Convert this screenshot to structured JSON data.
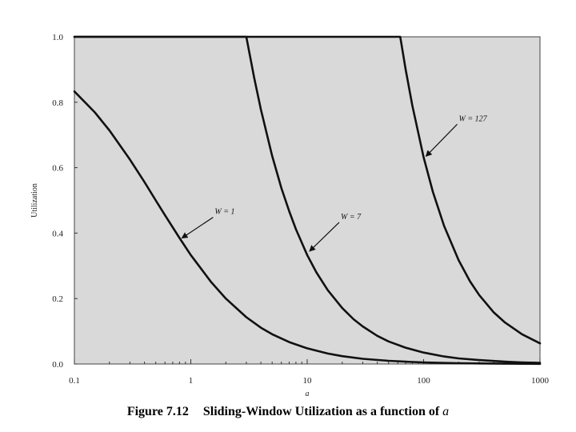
{
  "chart_data": {
    "type": "line",
    "title": "",
    "caption": {
      "number": "Figure 7.12",
      "text": "Sliding-Window Utilization as a function of",
      "variable": "a"
    },
    "xlabel": "a",
    "ylabel": "Utilization",
    "xscale": "log",
    "xlim": [
      0.1,
      1000
    ],
    "ylim": [
      0.0,
      1.0
    ],
    "xticks": [
      {
        "value": 0.1,
        "label": "0.1"
      },
      {
        "value": 1,
        "label": "1"
      },
      {
        "value": 10,
        "label": "10"
      },
      {
        "value": 100,
        "label": "100"
      },
      {
        "value": 1000,
        "label": "1000"
      }
    ],
    "yticks": [
      {
        "value": 0.0,
        "label": "0.0"
      },
      {
        "value": 0.2,
        "label": "0.2"
      },
      {
        "value": 0.4,
        "label": "0.4"
      },
      {
        "value": 0.6,
        "label": "0.6"
      },
      {
        "value": 0.8,
        "label": "0.8"
      },
      {
        "value": 1.0,
        "label": "1.0"
      }
    ],
    "grid": false,
    "background": "#d9d9d9",
    "line_color": "#111111",
    "series": [
      {
        "label": "W = 1",
        "W": 1,
        "annotation_point": [
          0.8,
          0.38
        ],
        "x": [
          0.1,
          0.15,
          0.2,
          0.3,
          0.4,
          0.5,
          0.6,
          0.8,
          1,
          1.5,
          2,
          3,
          4,
          5,
          7,
          10,
          15,
          20,
          30,
          50,
          70,
          100,
          150,
          200,
          300,
          500,
          700,
          1000
        ],
        "y": [
          0.833,
          0.769,
          0.714,
          0.625,
          0.556,
          0.5,
          0.455,
          0.385,
          0.333,
          0.25,
          0.2,
          0.143,
          0.111,
          0.091,
          0.067,
          0.048,
          0.032,
          0.024,
          0.016,
          0.0099,
          0.0071,
          0.005,
          0.0033,
          0.0025,
          0.0017,
          0.001,
          0.0007,
          0.0005
        ]
      },
      {
        "label": "W = 7",
        "W": 7,
        "annotation_point": [
          10,
          0.34
        ],
        "x": [
          0.1,
          1,
          2,
          3,
          3.5,
          4,
          5,
          6,
          7,
          8,
          10,
          12,
          15,
          20,
          25,
          30,
          40,
          50,
          70,
          100,
          150,
          200,
          300,
          500,
          700,
          1000
        ],
        "y": [
          1.0,
          1.0,
          1.0,
          1.0,
          0.875,
          0.778,
          0.636,
          0.538,
          0.467,
          0.412,
          0.333,
          0.28,
          0.226,
          0.171,
          0.137,
          0.115,
          0.086,
          0.069,
          0.05,
          0.035,
          0.023,
          0.017,
          0.012,
          0.007,
          0.005,
          0.0035
        ]
      },
      {
        "label": "W = 127",
        "W": 127,
        "annotation_point": [
          100,
          0.63
        ],
        "x": [
          0.1,
          1,
          10,
          50,
          63,
          70,
          80,
          100,
          120,
          150,
          200,
          250,
          300,
          400,
          500,
          700,
          1000
        ],
        "y": [
          1.0,
          1.0,
          1.0,
          1.0,
          1.0,
          0.901,
          0.79,
          0.632,
          0.527,
          0.422,
          0.317,
          0.253,
          0.211,
          0.158,
          0.127,
          0.091,
          0.063
        ]
      }
    ]
  }
}
